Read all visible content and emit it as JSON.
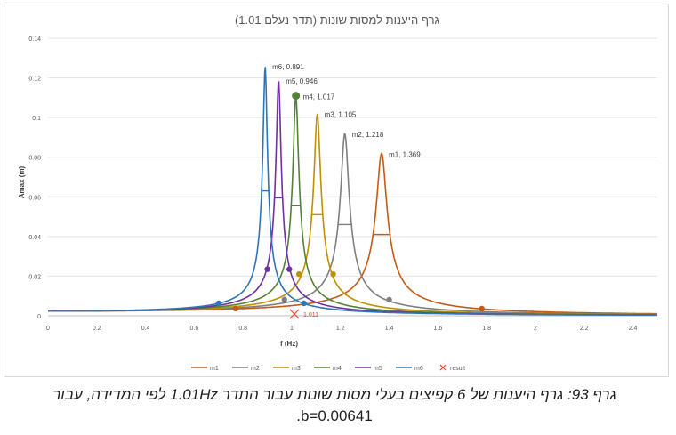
{
  "chart_data": {
    "type": "line",
    "title": "גרף היענות למסות שונות (תדר נעלם 1.01)",
    "xlabel": "f (Hz)",
    "ylabel": "Amax (m)",
    "xlim": [
      0,
      2.5
    ],
    "ylim": [
      0,
      0.14
    ],
    "x_ticks": [
      "0",
      "0.2",
      "0.4",
      "0.6",
      "0.8",
      "1",
      "1.2",
      "1.4",
      "1.6",
      "1.8",
      "2",
      "2.2",
      "2.4"
    ],
    "y_ticks": [
      "0",
      "0.02",
      "0.04",
      "0.06",
      "0.08",
      "0.1",
      "0.12",
      "0.14"
    ],
    "grid": "horizontal",
    "legend_position": "bottom",
    "series": [
      {
        "name": "m1",
        "color": "#c55a11",
        "f0": 1.369,
        "peak": 0.082,
        "peak_label": "m1, 1.369",
        "markers": [
          [
            0.77,
            0.0036
          ],
          [
            1.78,
            0.0036
          ]
        ]
      },
      {
        "name": "m2",
        "color": "#7f7f7f",
        "f0": 1.218,
        "peak": 0.092,
        "peak_label": "m2, 1.218",
        "markers": [
          [
            0.97,
            0.0082
          ],
          [
            1.4,
            0.0081
          ]
        ]
      },
      {
        "name": "m3",
        "color": "#bf9000",
        "f0": 1.105,
        "peak": 0.102,
        "peak_label": "m3, 1.105",
        "markers": [
          [
            1.03,
            0.021
          ],
          [
            1.17,
            0.021
          ]
        ]
      },
      {
        "name": "m4",
        "color": "#548235",
        "f0": 1.017,
        "peak": 0.111,
        "peak_label": "m4, 1.017",
        "markers": [
          [
            1.017,
            0.111
          ]
        ]
      },
      {
        "name": "m5",
        "color": "#7030a0",
        "f0": 0.946,
        "peak": 0.119,
        "peak_label": "m5, 0.946",
        "markers": [
          [
            0.9,
            0.0235
          ],
          [
            0.99,
            0.0235
          ]
        ]
      },
      {
        "name": "m6",
        "color": "#2e75b6",
        "f0": 0.891,
        "peak": 0.126,
        "peak_label": "m6, 0.891",
        "markers": [
          [
            0.7,
            0.0063
          ],
          [
            1.05,
            0.0063
          ]
        ]
      }
    ],
    "result": {
      "name": "result",
      "x": 1.011,
      "y": 0,
      "label": "1.011",
      "color": "#ff3b2f"
    }
  },
  "caption": {
    "line1": "גרף 93: גרף היענות של 6 קפיצים בעלי מסות שונות עבור התדר 1.01Hz לפי המדידה, עבור",
    "line2": "b=0.00641."
  }
}
